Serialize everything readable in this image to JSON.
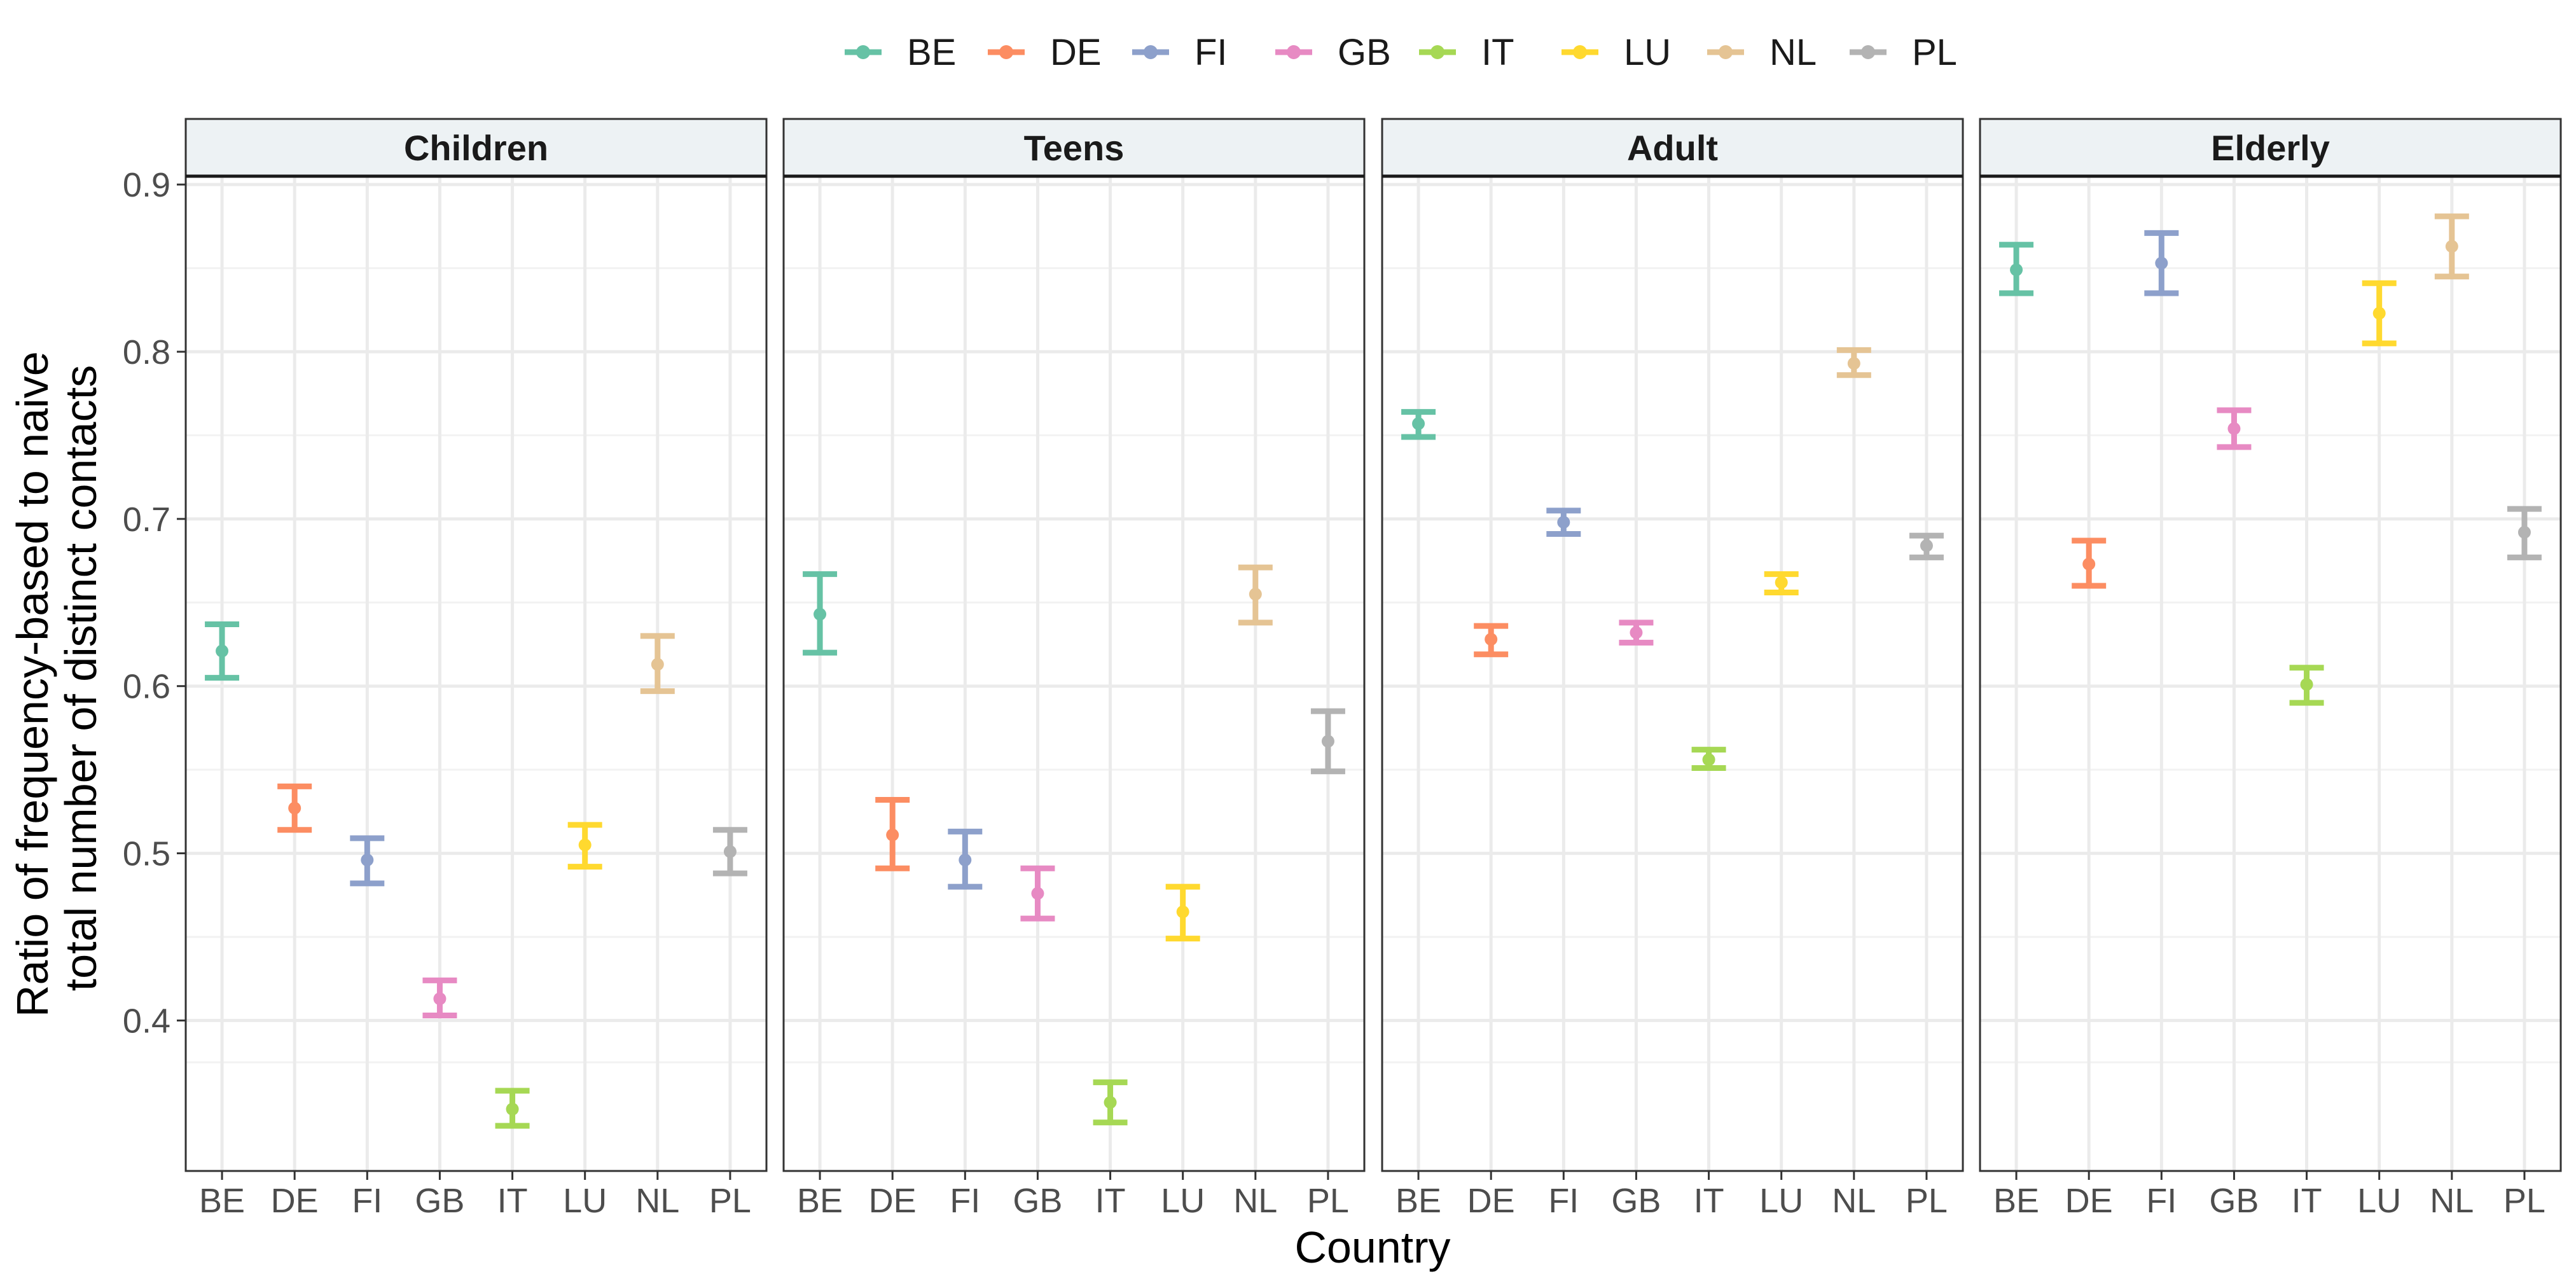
{
  "chart_data": {
    "type": "scatter",
    "subtype": "point-with-errorbars",
    "facet_titles": [
      "Children",
      "Teens",
      "Adult",
      "Elderly"
    ],
    "categories": [
      "BE",
      "DE",
      "FI",
      "GB",
      "IT",
      "LU",
      "NL",
      "PL"
    ],
    "xlabel": "Country",
    "ylabel_lines": [
      "Ratio of frequency-based to naive",
      "total number of distinct contacts"
    ],
    "ylim": [
      0.31,
      0.905
    ],
    "yticks": [
      0.4,
      0.5,
      0.6,
      0.7,
      0.8,
      0.9
    ],
    "ytick_labels": [
      "0.4",
      "0.5",
      "0.6",
      "0.7",
      "0.8",
      "0.9"
    ],
    "grid": true,
    "legend_position": "top",
    "legend": [
      "BE",
      "DE",
      "FI",
      "GB",
      "IT",
      "LU",
      "NL",
      "PL"
    ],
    "colors": {
      "BE": "#66c2a5",
      "DE": "#fc8d62",
      "FI": "#8da0cb",
      "GB": "#e78ac3",
      "IT": "#a6d854",
      "LU": "#ffd92f",
      "NL": "#e5c494",
      "PL": "#b3b3b3"
    },
    "series": {
      "Children": {
        "BE": {
          "value": 0.621,
          "lower": 0.605,
          "upper": 0.637
        },
        "DE": {
          "value": 0.527,
          "lower": 0.514,
          "upper": 0.54
        },
        "FI": {
          "value": 0.496,
          "lower": 0.482,
          "upper": 0.509
        },
        "GB": {
          "value": 0.413,
          "lower": 0.403,
          "upper": 0.424
        },
        "IT": {
          "value": 0.347,
          "lower": 0.337,
          "upper": 0.358
        },
        "LU": {
          "value": 0.505,
          "lower": 0.492,
          "upper": 0.517
        },
        "NL": {
          "value": 0.613,
          "lower": 0.597,
          "upper": 0.63
        },
        "PL": {
          "value": 0.501,
          "lower": 0.488,
          "upper": 0.514
        }
      },
      "Teens": {
        "BE": {
          "value": 0.643,
          "lower": 0.62,
          "upper": 0.667
        },
        "DE": {
          "value": 0.511,
          "lower": 0.491,
          "upper": 0.532
        },
        "FI": {
          "value": 0.496,
          "lower": 0.48,
          "upper": 0.513
        },
        "GB": {
          "value": 0.476,
          "lower": 0.461,
          "upper": 0.491
        },
        "IT": {
          "value": 0.351,
          "lower": 0.339,
          "upper": 0.363
        },
        "LU": {
          "value": 0.465,
          "lower": 0.449,
          "upper": 0.48
        },
        "NL": {
          "value": 0.655,
          "lower": 0.638,
          "upper": 0.671
        },
        "PL": {
          "value": 0.567,
          "lower": 0.549,
          "upper": 0.585
        }
      },
      "Adult": {
        "BE": {
          "value": 0.757,
          "lower": 0.749,
          "upper": 0.764
        },
        "DE": {
          "value": 0.628,
          "lower": 0.619,
          "upper": 0.636
        },
        "FI": {
          "value": 0.698,
          "lower": 0.691,
          "upper": 0.705
        },
        "GB": {
          "value": 0.632,
          "lower": 0.626,
          "upper": 0.638
        },
        "IT": {
          "value": 0.556,
          "lower": 0.551,
          "upper": 0.562
        },
        "LU": {
          "value": 0.662,
          "lower": 0.656,
          "upper": 0.667
        },
        "NL": {
          "value": 0.793,
          "lower": 0.786,
          "upper": 0.801
        },
        "PL": {
          "value": 0.684,
          "lower": 0.677,
          "upper": 0.69
        }
      },
      "Elderly": {
        "BE": {
          "value": 0.849,
          "lower": 0.835,
          "upper": 0.864
        },
        "DE": {
          "value": 0.673,
          "lower": 0.66,
          "upper": 0.687
        },
        "FI": {
          "value": 0.853,
          "lower": 0.835,
          "upper": 0.871
        },
        "GB": {
          "value": 0.754,
          "lower": 0.743,
          "upper": 0.765
        },
        "IT": {
          "value": 0.601,
          "lower": 0.59,
          "upper": 0.611
        },
        "LU": {
          "value": 0.823,
          "lower": 0.805,
          "upper": 0.841
        },
        "NL": {
          "value": 0.863,
          "lower": 0.845,
          "upper": 0.881
        },
        "PL": {
          "value": 0.692,
          "lower": 0.677,
          "upper": 0.706
        }
      }
    }
  }
}
